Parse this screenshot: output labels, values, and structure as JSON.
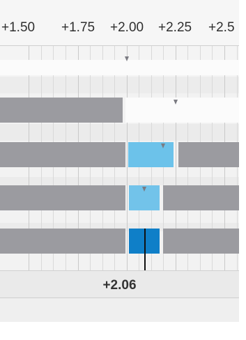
{
  "ruler": {
    "labels": [
      "+1.50",
      "+1.75",
      "+2.00",
      "+2.25",
      "+2.5"
    ]
  },
  "readout": {
    "value": "+2.06"
  },
  "colors": {
    "track_gray": "#9b9ba0",
    "selection_light_blue": "#6cc2ea",
    "selection_blue": "#0f7fc8",
    "cursor": "#111111"
  }
}
